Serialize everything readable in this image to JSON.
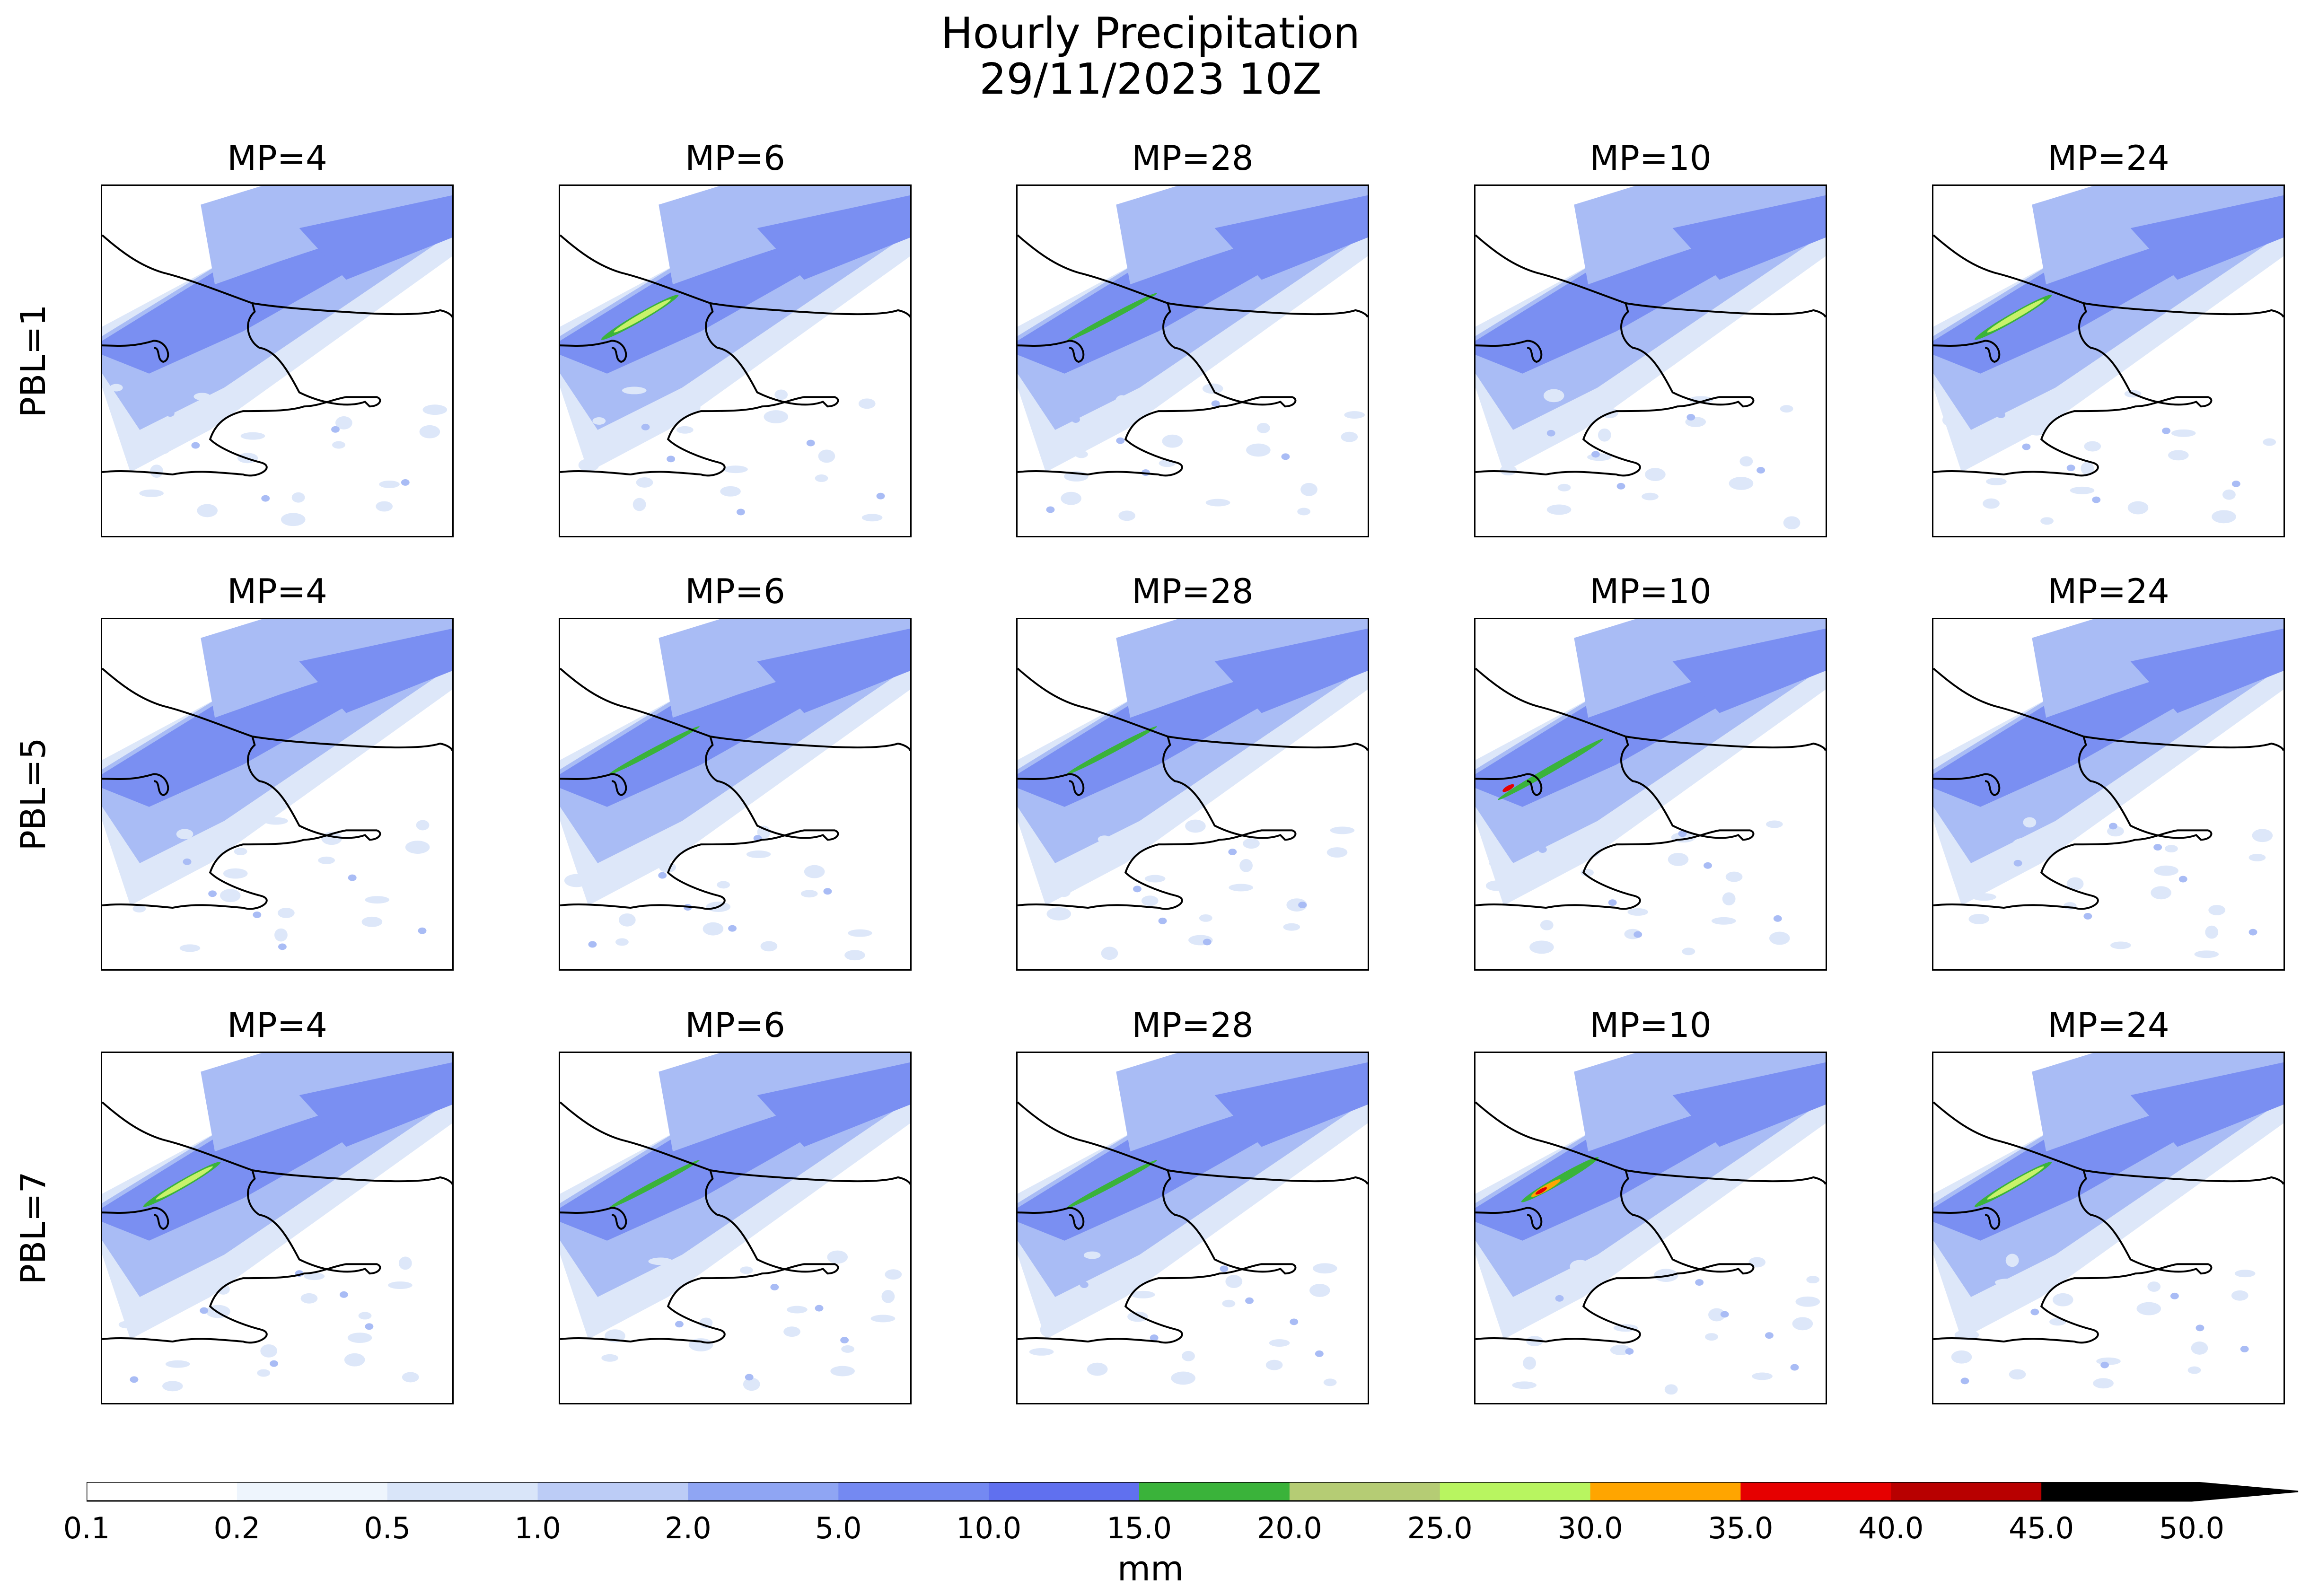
{
  "figure": {
    "title_line1": "Hourly Precipitation",
    "title_line2": "29/11/2023 10Z"
  },
  "columns": [
    "MP=4",
    "MP=6",
    "MP=28",
    "MP=10",
    "MP=24"
  ],
  "rows": [
    "PBL=1",
    "PBL=5",
    "PBL=7"
  ],
  "colorbar": {
    "unit": "mm",
    "levels": [
      "0.1",
      "0.2",
      "0.5",
      "1.0",
      "2.0",
      "5.0",
      "10.0",
      "15.0",
      "20.0",
      "25.0",
      "30.0",
      "35.0",
      "40.0",
      "45.0",
      "50.0"
    ],
    "colors": [
      "#ffffff",
      "#eef5fd",
      "#d9e5f9",
      "#bcccf6",
      "#8fa5f3",
      "#7489f2",
      "#6070ef",
      "#3ab33a",
      "#b5cc74",
      "#b8f560",
      "#ffa500",
      "#e60000",
      "#b80000",
      "#000000"
    ],
    "extend": "max"
  },
  "map_colors": {
    "light": "#dde7f9",
    "medium": "#a9bcf5",
    "strong": "#7a8ff2",
    "green": "#3ab33a",
    "yellowgreen": "#c8f26a",
    "orange": "#ffa500",
    "red": "#e60000",
    "coast": "#000000"
  },
  "panel_features": [
    [
      "none",
      "yellowgreen",
      "green",
      "none",
      "yellowgreen"
    ],
    [
      "none",
      "green",
      "green",
      "green-red",
      "none"
    ],
    [
      "yellowgreen",
      "green",
      "green",
      "red",
      "yellowgreen"
    ]
  ]
}
